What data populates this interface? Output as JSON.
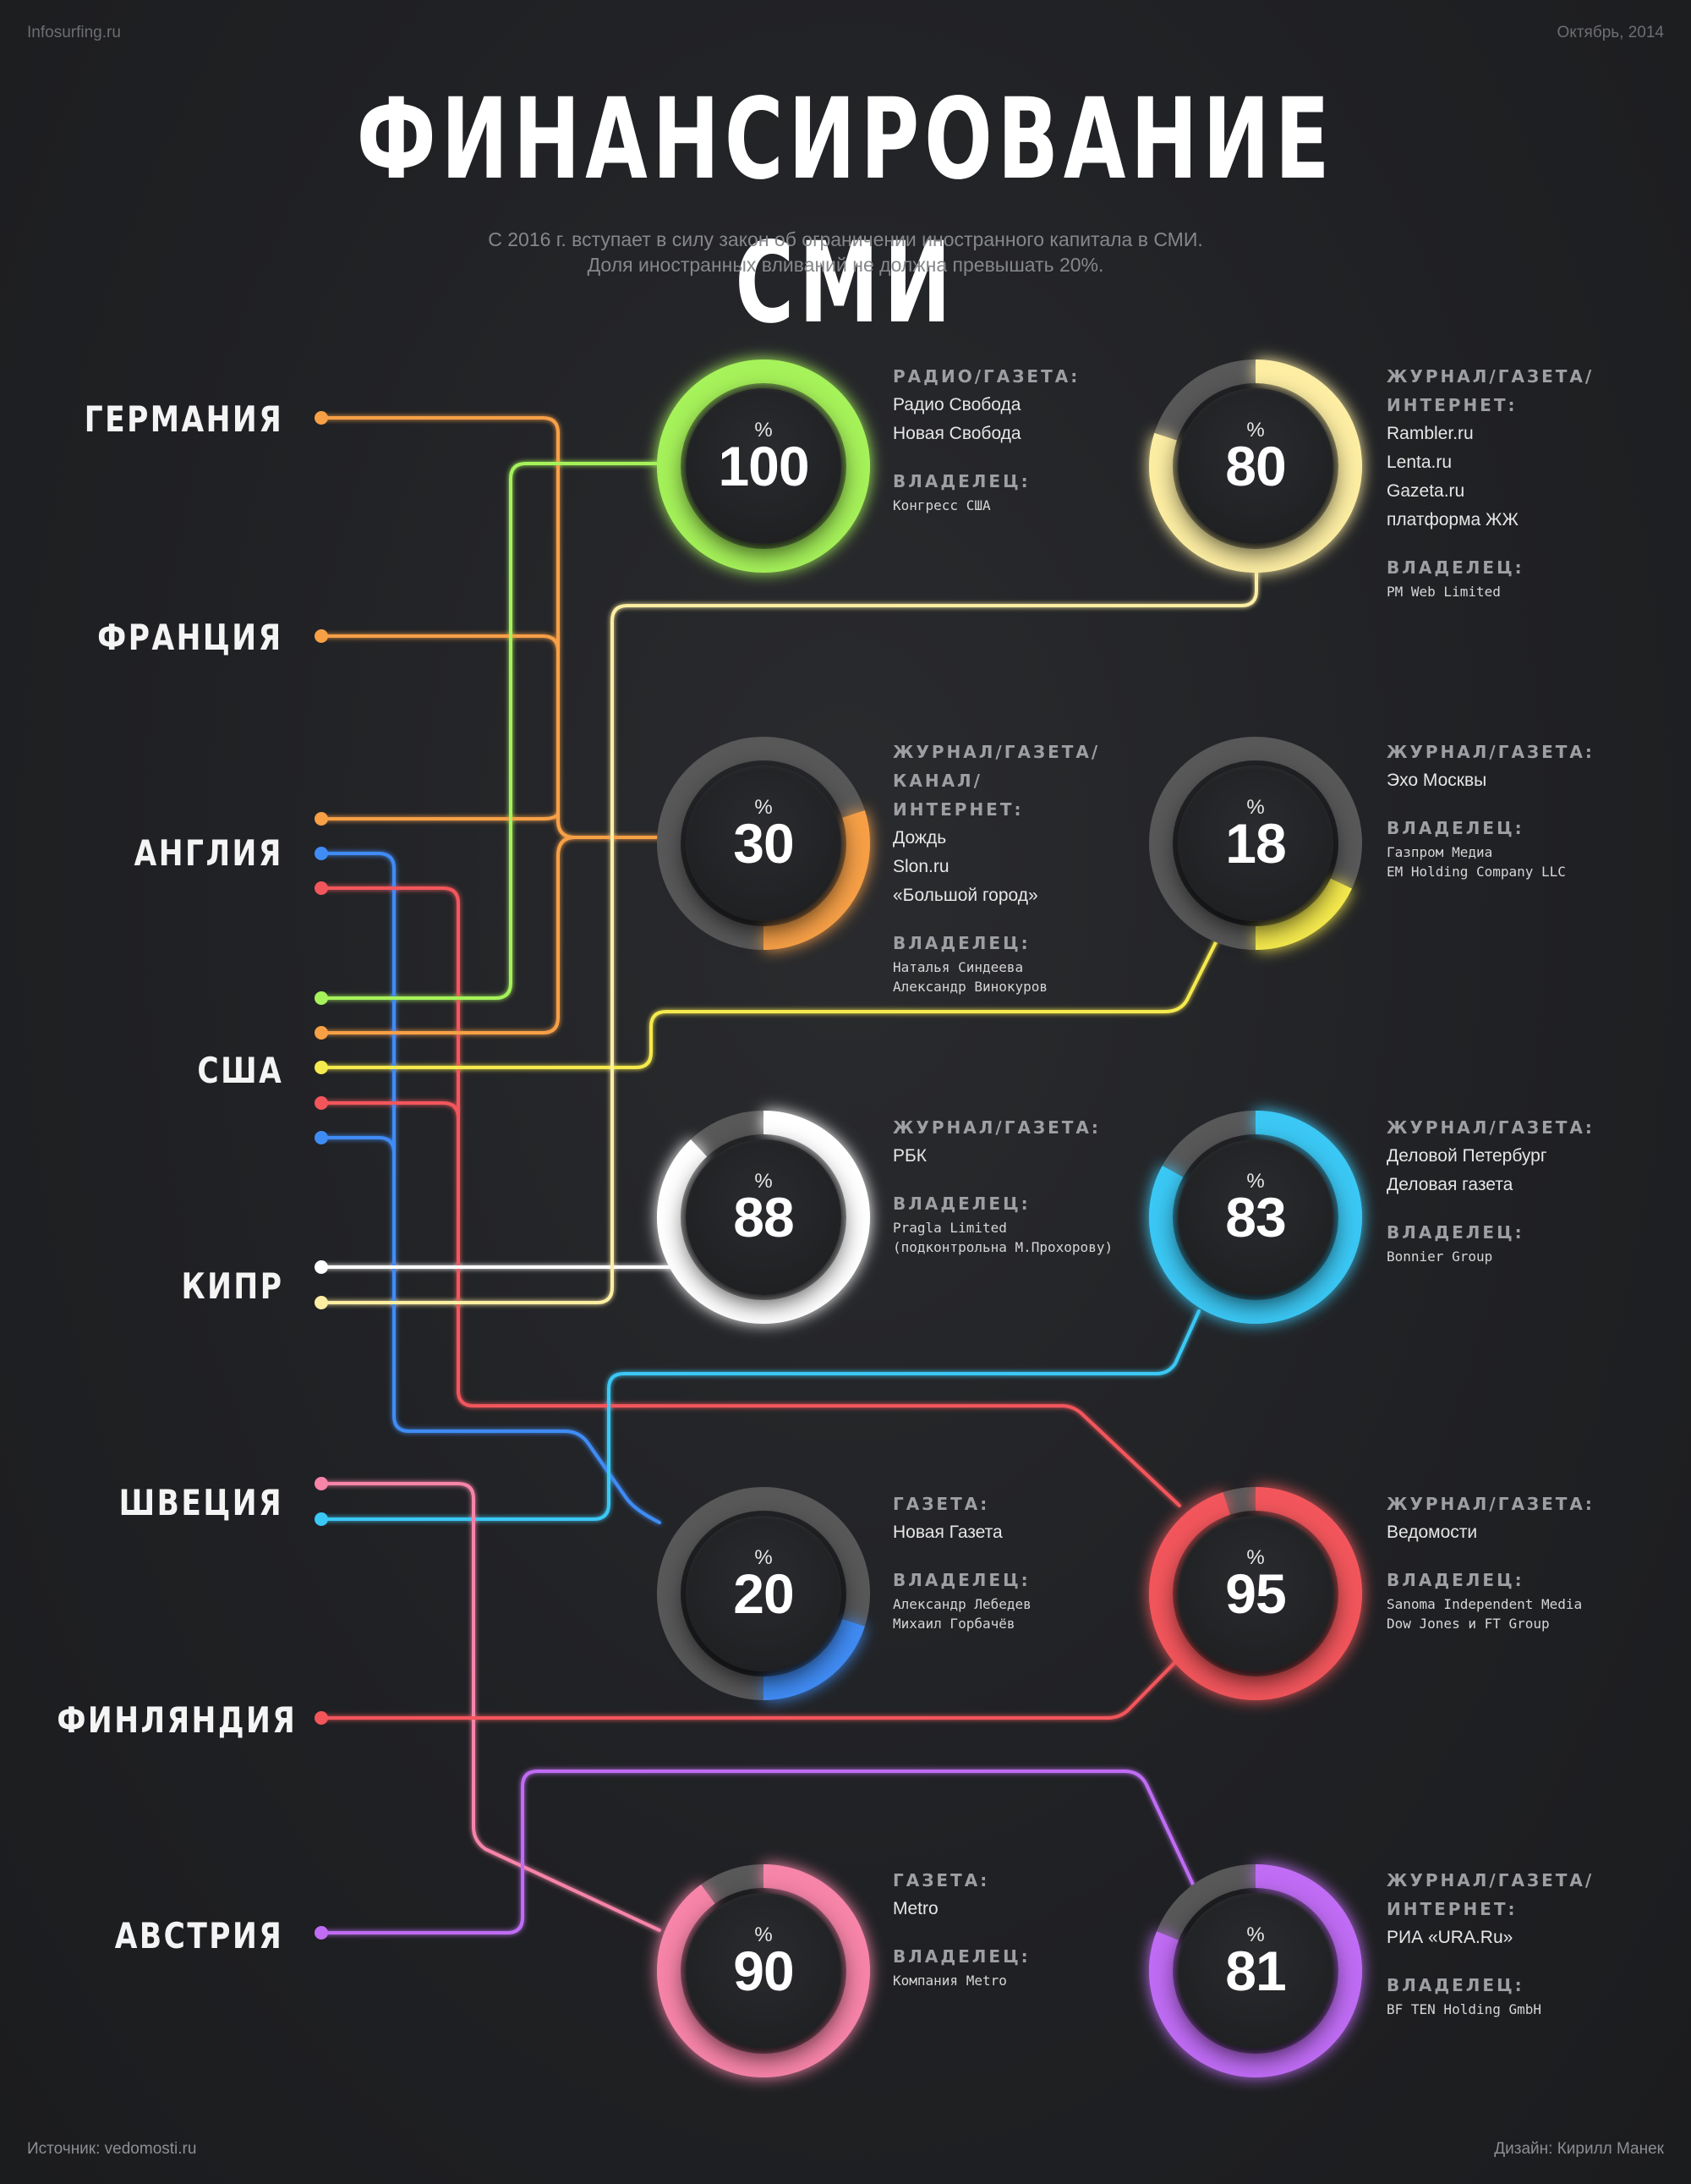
{
  "header": {
    "site": "Infosurfing.ru",
    "date": "Октябрь, 2014",
    "title": "ФИНАНСИРОВАНИЕ СМИ",
    "subtitle_line1": "С 2016 г. вступает в силу закон об ограничении иностранного капитала в СМИ.",
    "subtitle_line2": "Доля иностранных вливаний не должна превышать 20%."
  },
  "countries": [
    "ГЕРМАНИЯ",
    "ФРАНЦИЯ",
    "АНГЛИЯ",
    "США",
    "КИПР",
    "ШВЕЦИЯ",
    "ФИНЛЯНДИЯ",
    "АВСТРИЯ"
  ],
  "colors": {
    "green": "#a6f25a",
    "cream": "#fdeea3",
    "orange": "#f7a046",
    "yellow": "#f5ea4e",
    "white": "#ffffff",
    "cyan": "#3ac8f5",
    "blue": "#3f8cf5",
    "red": "#f2565b",
    "pink": "#f784a9",
    "purple": "#c06cf5",
    "track": "#585859"
  },
  "rings": [
    {
      "value": "100",
      "pct": "%",
      "fraction": 1.0,
      "color": "#a6f25a",
      "category": "РАДИО/ГАЗЕТА:",
      "items": [
        "Радио Свобода",
        "Новая Свобода"
      ],
      "owner_label": "ВЛАДЕЛЕЦ:",
      "owners": [
        "Конгресс США"
      ]
    },
    {
      "value": "80",
      "pct": "%",
      "fraction": 0.8,
      "color": "#fdeea3",
      "category": "ЖУРНАЛ/ГАЗЕТА/ ИНТЕРНЕТ:",
      "items": [
        "Rambler.ru",
        "Lenta.ru",
        "Gazeta.ru",
        "платформа ЖЖ"
      ],
      "owner_label": "ВЛАДЕЛЕЦ:",
      "owners": [
        "PM Web Limited"
      ]
    },
    {
      "value": "30",
      "pct": "%",
      "fraction": 0.3,
      "color": "#f7a046",
      "category": "ЖУРНАЛ/ГАЗЕТА/ КАНАЛ/ИНТЕРНЕТ:",
      "items": [
        "Дождь",
        "Slon.ru",
        "«Большой город»"
      ],
      "owner_label": "ВЛАДЕЛЕЦ:",
      "owners": [
        "Наталья Синдеева",
        "Александр Винокуров"
      ]
    },
    {
      "value": "18",
      "pct": "%",
      "fraction": 0.18,
      "color": "#f5ea4e",
      "category": "ЖУРНАЛ/ГАЗЕТА:",
      "items": [
        "Эхо Москвы"
      ],
      "owner_label": "ВЛАДЕЛЕЦ:",
      "owners": [
        "Газпром Медиа",
        "EM Holding Company LLC"
      ]
    },
    {
      "value": "88",
      "pct": "%",
      "fraction": 0.88,
      "color": "#ffffff",
      "category": "ЖУРНАЛ/ГАЗЕТА:",
      "items": [
        "РБК"
      ],
      "owner_label": "ВЛАДЕЛЕЦ:",
      "owners": [
        "Pragla Limited",
        "(подконтрольна М.Прохорову)"
      ]
    },
    {
      "value": "83",
      "pct": "%",
      "fraction": 0.83,
      "color": "#3ac8f5",
      "category": "ЖУРНАЛ/ГАЗЕТА:",
      "items": [
        "Деловой Петербург",
        "Деловая газета"
      ],
      "owner_label": "ВЛАДЕЛЕЦ:",
      "owners": [
        "Bonnier Group"
      ]
    },
    {
      "value": "20",
      "pct": "%",
      "fraction": 0.2,
      "color": "#3f8cf5",
      "category": "ГАЗЕТА:",
      "items": [
        "Новая Газета"
      ],
      "owner_label": "ВЛАДЕЛЕЦ:",
      "owners": [
        "Александр Лебедев",
        "Михаил Горбачёв"
      ]
    },
    {
      "value": "95",
      "pct": "%",
      "fraction": 0.95,
      "color": "#f2565b",
      "category": "ЖУРНАЛ/ГАЗЕТА:",
      "items": [
        "Ведомости"
      ],
      "owner_label": "ВЛАДЕЛЕЦ:",
      "owners": [
        "Sanoma Independent Media",
        "Dow Jones и FT Group"
      ]
    },
    {
      "value": "90",
      "pct": "%",
      "fraction": 0.9,
      "color": "#f784a9",
      "category": "ГАЗЕТА:",
      "items": [
        "Metro"
      ],
      "owner_label": "ВЛАДЕЛЕЦ:",
      "owners": [
        "Компания Metro"
      ]
    },
    {
      "value": "81",
      "pct": "%",
      "fraction": 0.81,
      "color": "#c06cf5",
      "category": "ЖУРНАЛ/ГАЗЕТА/ ИНТЕРНЕТ:",
      "items": [
        "РИА «URA.Ru»"
      ],
      "owner_label": "ВЛАДЕЛЕЦ:",
      "owners": [
        "BF TEN Holding GmbH"
      ]
    }
  ],
  "footer": {
    "source": "Источник: vedomosti.ru",
    "design": "Дизайн: Кирилл Манек"
  }
}
